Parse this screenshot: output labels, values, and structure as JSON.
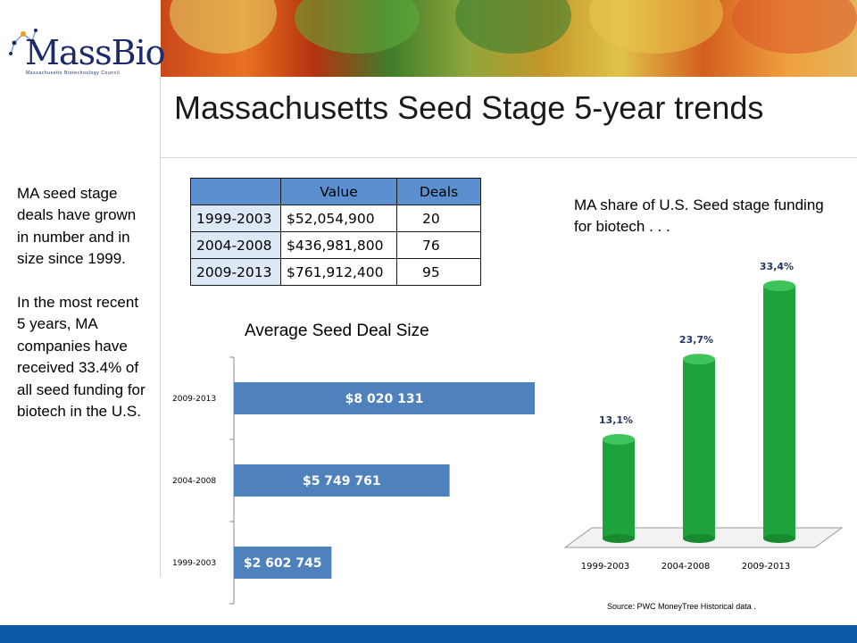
{
  "header": {
    "logo_text_left": "Mass",
    "logo_text_right": "Bio",
    "logo_subtitle": "Massachusetts Biotechnology Council",
    "title": "Massachusetts Seed Stage 5-year trends"
  },
  "sidebar": {
    "paragraph_1": "MA seed stage deals have grown in number and in size since 1999.",
    "paragraph_2": "In the most recent 5 years, MA companies have received 33.4% of all seed funding for biotech in the U.S."
  },
  "table": {
    "headers": [
      "",
      "Value",
      "Deals"
    ],
    "rows": [
      {
        "period": "1999-2003",
        "value": "$52,054,900",
        "deals": "20"
      },
      {
        "period": "2004-2008",
        "value": "$436,981,800",
        "deals": "76"
      },
      {
        "period": "2009-2013",
        "value": "$761,912,400",
        "deals": "95"
      }
    ]
  },
  "share_chart_title": "MA share of U.S. Seed stage funding for biotech . . .",
  "source": "Source: PWC MoneyTree Historical data .",
  "colors": {
    "bar_blue": "#4f81bd",
    "bar_green": "#1ea33c",
    "footer_blue": "#0c5aa6",
    "label_navy": "#1f3864"
  },
  "chart_data": [
    {
      "type": "bar",
      "orientation": "horizontal",
      "title": "Average Seed Deal Size",
      "categories": [
        "2009-2013",
        "2004-2008",
        "1999-2003"
      ],
      "values": [
        8020131,
        5749761,
        2602745
      ],
      "labels": [
        "$8 020 131",
        "$5 749 761",
        "$2 602 745"
      ],
      "xlim": [
        0,
        8020131
      ]
    },
    {
      "type": "bar",
      "style": "3d-cylinder",
      "title": "",
      "categories": [
        "1999-2003",
        "2004-2008",
        "2009-2013"
      ],
      "values": [
        13.1,
        23.7,
        33.4
      ],
      "labels": [
        "13,1%",
        "23,7%",
        "33,4%"
      ],
      "ylim": [
        0,
        33.4
      ]
    }
  ]
}
